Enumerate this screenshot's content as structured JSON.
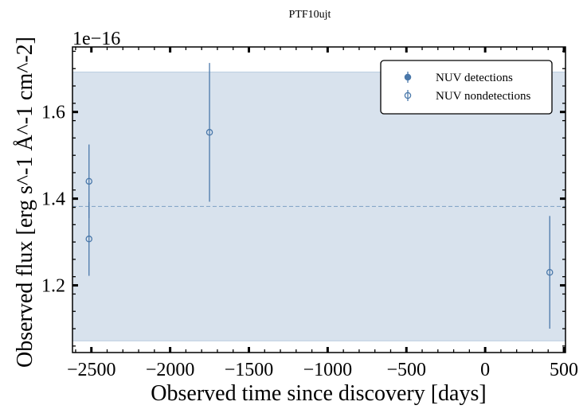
{
  "chart_data": {
    "type": "scatter",
    "title": "PTF10ujt",
    "xlabel": "Observed time since discovery [days]",
    "ylabel": "Observed flux [erg s^-1 Å^-1 cm^-2]",
    "y_offset_label": "1e−16",
    "xlim": [
      -2620,
      510
    ],
    "ylim": [
      1.045,
      1.75
    ],
    "x_ticks": [
      -2500,
      -2000,
      -1500,
      -1000,
      -500,
      0,
      500
    ],
    "x_tick_labels": [
      "−2500",
      "−2000",
      "−1500",
      "−1000",
      "−500",
      "0",
      "500"
    ],
    "y_ticks": [
      1.2,
      1.4,
      1.6
    ],
    "y_tick_labels": [
      "1.2",
      "1.4",
      "1.6"
    ],
    "grid": false,
    "legend": {
      "position": "top-right",
      "entries": [
        "NUV detections",
        "NUV nondetections"
      ]
    },
    "band": {
      "lower": 1.072,
      "upper": 1.692,
      "mean": 1.382,
      "color": "#d8e2ed"
    },
    "series": [
      {
        "name": "NUV detections",
        "marker": "filled-circle",
        "color": "#4a78aa",
        "points": []
      },
      {
        "name": "NUV nondetections",
        "marker": "open-circle",
        "color": "#4a78aa",
        "points": [
          {
            "x": -2515,
            "y": 1.44,
            "ylow": 1.355,
            "yhigh": 1.525
          },
          {
            "x": -2515,
            "y": 1.307,
            "ylow": 1.222,
            "yhigh": 1.392
          },
          {
            "x": -1750,
            "y": 1.553,
            "ylow": 1.393,
            "yhigh": 1.713
          },
          {
            "x": 410,
            "y": 1.23,
            "ylow": 1.1,
            "yhigh": 1.36
          }
        ]
      }
    ]
  }
}
